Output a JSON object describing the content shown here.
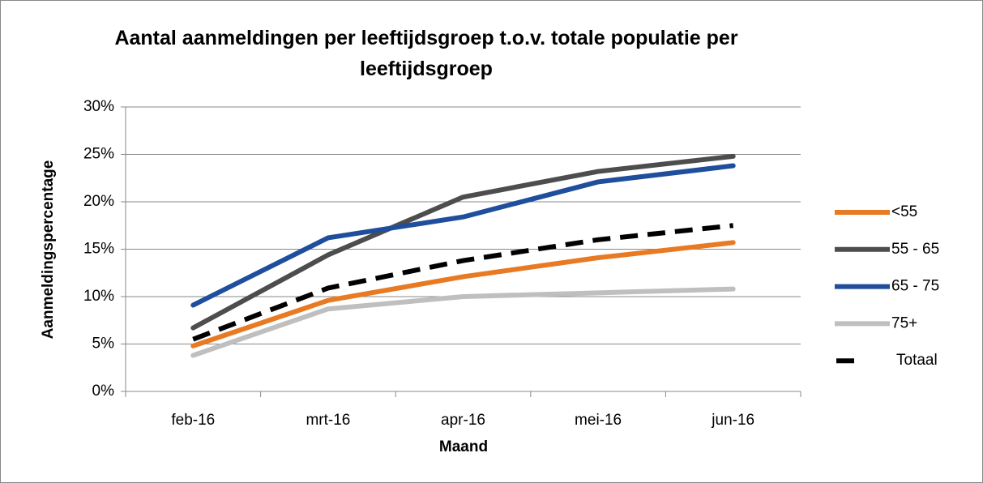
{
  "chart_data": {
    "type": "line",
    "title": "Aantal aanmeldingen per leeftijdsgroep t.o.v. totale populatie per leeftijdsgroep",
    "x_label": "Maand",
    "y_label": "Aanmeldingspercentage",
    "categories": [
      "feb-16",
      "mrt-16",
      "apr-16",
      "mei-16",
      "jun-16"
    ],
    "series": [
      {
        "name": "<55",
        "color": "#e87a23",
        "values": [
          4.8,
          9.6,
          12.1,
          14.1,
          15.7
        ]
      },
      {
        "name": "55 - 65",
        "color": "#4d4d4d",
        "values": [
          6.7,
          14.4,
          20.5,
          23.2,
          24.8
        ]
      },
      {
        "name": "65 - 75",
        "color": "#1f4e9c",
        "values": [
          9.1,
          16.2,
          18.4,
          22.1,
          23.8
        ]
      },
      {
        "name": "75+",
        "color": "#bfbfbf",
        "values": [
          3.8,
          8.7,
          10.0,
          10.4,
          10.8
        ]
      },
      {
        "name": "Totaal",
        "color": "#000000",
        "line_style": "dashed",
        "values": [
          5.5,
          10.9,
          13.8,
          16.0,
          17.5
        ]
      }
    ],
    "ylim": [
      0,
      30
    ],
    "yticks": [
      {
        "value": 0,
        "label": "0%"
      },
      {
        "value": 5,
        "label": "5%"
      },
      {
        "value": 10,
        "label": "10%"
      },
      {
        "value": 15,
        "label": "15%"
      },
      {
        "value": 20,
        "label": "20%"
      },
      {
        "value": 25,
        "label": "25%"
      },
      {
        "value": 30,
        "label": "30%"
      }
    ],
    "grid": true,
    "legend": "right"
  }
}
